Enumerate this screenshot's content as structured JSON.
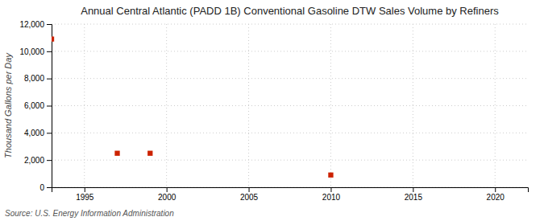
{
  "chart_data": {
    "type": "scatter",
    "title": "Annual Central Atlantic (PADD 1B) Conventional Gasoline DTW Sales Volume by Refiners",
    "ylabel": "Thousand Gallons per Day",
    "annotations": [
      "Source: U.S. Energy Information Administration"
    ],
    "x": [
      1993,
      1997,
      1999,
      2010
    ],
    "values": [
      10900,
      2500,
      2500,
      900
    ],
    "color": "#cc2200",
    "marker": "square",
    "xlim": [
      1993,
      2022
    ],
    "ylim": [
      0,
      12000
    ],
    "xticks": [
      1995,
      2000,
      2005,
      2010,
      2015,
      2020
    ],
    "yticks": [
      0,
      {
        "value": 2000,
        "label": "2,000"
      },
      {
        "value": 4000,
        "label": "4,000"
      },
      {
        "value": 6000,
        "label": "6,000"
      },
      {
        "value": 8000,
        "label": "8,000"
      },
      {
        "value": 10000,
        "label": "10,000"
      },
      {
        "value": 12000,
        "label": "12,000"
      }
    ],
    "grid": true
  }
}
